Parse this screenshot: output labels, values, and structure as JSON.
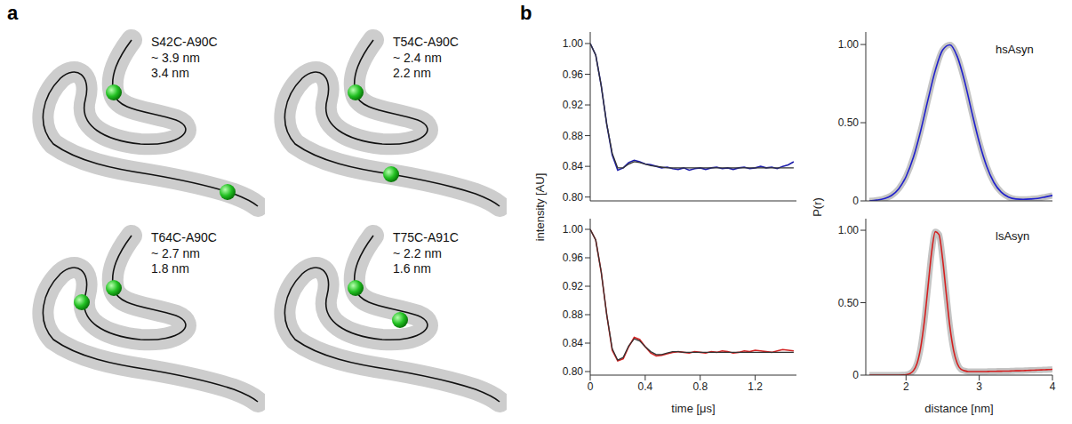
{
  "panel_a": {
    "letter": "a",
    "items": [
      {
        "label": "S42C-A90C",
        "lines": [
          "~ 3.9 nm",
          "3.4 nm"
        ]
      },
      {
        "label": "T54C-A90C",
        "lines": [
          "~ 2.4 nm",
          "2.2 nm"
        ]
      },
      {
        "label": "T64C-A90C",
        "lines": [
          "~ 2.7 nm",
          "1.8 nm"
        ]
      },
      {
        "label": "T75C-A91C",
        "lines": [
          "~ 2.2 nm",
          "1.6 nm"
        ]
      }
    ]
  },
  "panel_b": {
    "letter": "b"
  },
  "chart_data": [
    {
      "type": "line",
      "ylabel": "intensity [AU]",
      "x": [
        0,
        0.04,
        0.08,
        0.12,
        0.16,
        0.2,
        0.24,
        0.28,
        0.32,
        0.36,
        0.4,
        0.44,
        0.48,
        0.52,
        0.56,
        0.6,
        0.64,
        0.68,
        0.72,
        0.76,
        0.8,
        0.84,
        0.88,
        0.92,
        0.96,
        1.0,
        1.04,
        1.08,
        1.12,
        1.16,
        1.2,
        1.24,
        1.28,
        1.32,
        1.36,
        1.4,
        1.44,
        1.48
      ],
      "series": [
        {
          "color": "#1c1caa",
          "values": [
            1.0,
            0.985,
            0.945,
            0.895,
            0.855,
            0.835,
            0.838,
            0.845,
            0.848,
            0.846,
            0.843,
            0.842,
            0.84,
            0.838,
            0.839,
            0.837,
            0.836,
            0.838,
            0.835,
            0.837,
            0.838,
            0.836,
            0.838,
            0.839,
            0.837,
            0.838,
            0.836,
            0.838,
            0.839,
            0.837,
            0.838,
            0.84,
            0.838,
            0.839,
            0.837,
            0.84,
            0.842,
            0.846
          ]
        },
        {
          "color": "#333333",
          "values": [
            1.0,
            0.985,
            0.945,
            0.895,
            0.857,
            0.838,
            0.838,
            0.843,
            0.846,
            0.845,
            0.843,
            0.841,
            0.84,
            0.839,
            0.838,
            0.838,
            0.838,
            0.838,
            0.838,
            0.838,
            0.838,
            0.838,
            0.838,
            0.838,
            0.838,
            0.838,
            0.838,
            0.838,
            0.838,
            0.838,
            0.838,
            0.838,
            0.838,
            0.838,
            0.838,
            0.838,
            0.838,
            0.838
          ]
        }
      ],
      "xlim": [
        0,
        1.5
      ],
      "xticks": [
        0,
        0.4,
        0.8,
        1.2
      ],
      "ylim": [
        0.795,
        1.015
      ],
      "yticks": [
        {
          "value": 0.8,
          "label": "0.80"
        },
        {
          "value": 0.84,
          "label": "0.84"
        },
        {
          "value": 0.88,
          "label": "0.88"
        },
        {
          "value": 0.92,
          "label": "0.92"
        },
        {
          "value": 0.96,
          "label": "0.96"
        },
        {
          "value": 1.0,
          "label": "1.00"
        }
      ],
      "tick_labels": "y"
    },
    {
      "type": "line",
      "xlabel": "time [μs]",
      "x": [
        0,
        0.04,
        0.08,
        0.12,
        0.16,
        0.2,
        0.24,
        0.28,
        0.32,
        0.36,
        0.4,
        0.44,
        0.48,
        0.52,
        0.56,
        0.6,
        0.64,
        0.68,
        0.72,
        0.76,
        0.8,
        0.84,
        0.88,
        0.92,
        0.96,
        1.0,
        1.04,
        1.08,
        1.12,
        1.16,
        1.2,
        1.24,
        1.28,
        1.32,
        1.36,
        1.4,
        1.44,
        1.48
      ],
      "series": [
        {
          "color": "#d42020",
          "values": [
            1.0,
            0.985,
            0.94,
            0.88,
            0.83,
            0.815,
            0.818,
            0.835,
            0.848,
            0.845,
            0.835,
            0.826,
            0.822,
            0.823,
            0.825,
            0.827,
            0.828,
            0.827,
            0.826,
            0.828,
            0.827,
            0.826,
            0.828,
            0.827,
            0.829,
            0.828,
            0.826,
            0.827,
            0.829,
            0.828,
            0.83,
            0.829,
            0.828,
            0.827,
            0.829,
            0.831,
            0.83,
            0.829
          ]
        },
        {
          "color": "#333333",
          "values": [
            1.0,
            0.985,
            0.94,
            0.88,
            0.832,
            0.816,
            0.82,
            0.836,
            0.846,
            0.843,
            0.835,
            0.828,
            0.824,
            0.824,
            0.826,
            0.828,
            0.828,
            0.827,
            0.827,
            0.827,
            0.827,
            0.827,
            0.827,
            0.827,
            0.827,
            0.827,
            0.827,
            0.827,
            0.827,
            0.827,
            0.827,
            0.827,
            0.827,
            0.827,
            0.827,
            0.827,
            0.827,
            0.827
          ]
        }
      ],
      "xlim": [
        0,
        1.5
      ],
      "xticks": [
        0,
        0.4,
        0.8,
        1.2
      ],
      "ylim": [
        0.795,
        1.015
      ],
      "yticks": [
        {
          "value": 0.8,
          "label": "0.80"
        },
        {
          "value": 0.84,
          "label": "0.84"
        },
        {
          "value": 0.88,
          "label": "0.88"
        },
        {
          "value": 0.92,
          "label": "0.92"
        },
        {
          "value": 0.96,
          "label": "0.96"
        },
        {
          "value": 1.0,
          "label": "1.00"
        }
      ]
    },
    {
      "type": "line",
      "title": "hsAsyn",
      "ylabel": "P(r)",
      "x": [
        1.5,
        1.6,
        1.7,
        1.8,
        1.9,
        2.0,
        2.1,
        2.2,
        2.3,
        2.4,
        2.5,
        2.6,
        2.7,
        2.8,
        2.9,
        3.0,
        3.1,
        3.2,
        3.3,
        3.4,
        3.5,
        3.6,
        3.7,
        3.8,
        3.9,
        4.0
      ],
      "series": [
        {
          "color": "#2020cc",
          "values": [
            0,
            0.005,
            0.014,
            0.034,
            0.077,
            0.155,
            0.278,
            0.448,
            0.647,
            0.835,
            0.965,
            0.998,
            0.923,
            0.765,
            0.565,
            0.375,
            0.223,
            0.118,
            0.056,
            0.024,
            0.012,
            0.01,
            0.012,
            0.016,
            0.025,
            0.035
          ]
        }
      ],
      "xlim": [
        1.45,
        4
      ],
      "xticks": [
        2,
        3,
        4
      ],
      "ylim": [
        0,
        1.08
      ],
      "yticks": [
        0,
        {
          "value": 0.5,
          "label": "0.50"
        },
        {
          "value": 1,
          "label": "1.00"
        }
      ],
      "tick_labels": "y"
    },
    {
      "type": "line",
      "title": "lsAsyn",
      "xlabel": "distance [nm]",
      "x": [
        1.5,
        1.55,
        1.6,
        1.65,
        1.7,
        1.75,
        1.8,
        1.85,
        1.9,
        1.95,
        2.0,
        2.05,
        2.1,
        2.15,
        2.2,
        2.25,
        2.3,
        2.35,
        2.4,
        2.45,
        2.5,
        2.55,
        2.6,
        2.65,
        2.7,
        2.75,
        2.8,
        2.85,
        2.9,
        2.95,
        3.0,
        3.05,
        3.1,
        3.15,
        3.2,
        3.25,
        3.3,
        3.35,
        3.4,
        3.45,
        3.5,
        3.55,
        3.6,
        3.65,
        3.7,
        3.75,
        3.8,
        3.85,
        3.9,
        3.95,
        4.0
      ],
      "series": [
        {
          "color": "#d42020",
          "values": [
            0,
            0,
            0,
            0,
            0,
            0,
            0,
            0,
            0,
            0.001,
            0.003,
            0.01,
            0.03,
            0.08,
            0.19,
            0.37,
            0.61,
            0.85,
            0.99,
            0.97,
            0.8,
            0.56,
            0.33,
            0.17,
            0.08,
            0.04,
            0.03,
            0.025,
            0.025,
            0.025,
            0.025,
            0.025,
            0.025,
            0.026,
            0.026,
            0.027,
            0.027,
            0.028,
            0.028,
            0.029,
            0.03,
            0.03,
            0.031,
            0.032,
            0.033,
            0.034,
            0.035,
            0.036,
            0.037,
            0.038,
            0.04
          ]
        }
      ],
      "xlim": [
        1.45,
        4
      ],
      "xticks": [
        2,
        3,
        4
      ],
      "ylim": [
        0,
        1.08
      ],
      "yticks": [
        0,
        {
          "value": 0.5,
          "label": "0.50"
        },
        {
          "value": 1,
          "label": "1.00"
        }
      ]
    }
  ]
}
